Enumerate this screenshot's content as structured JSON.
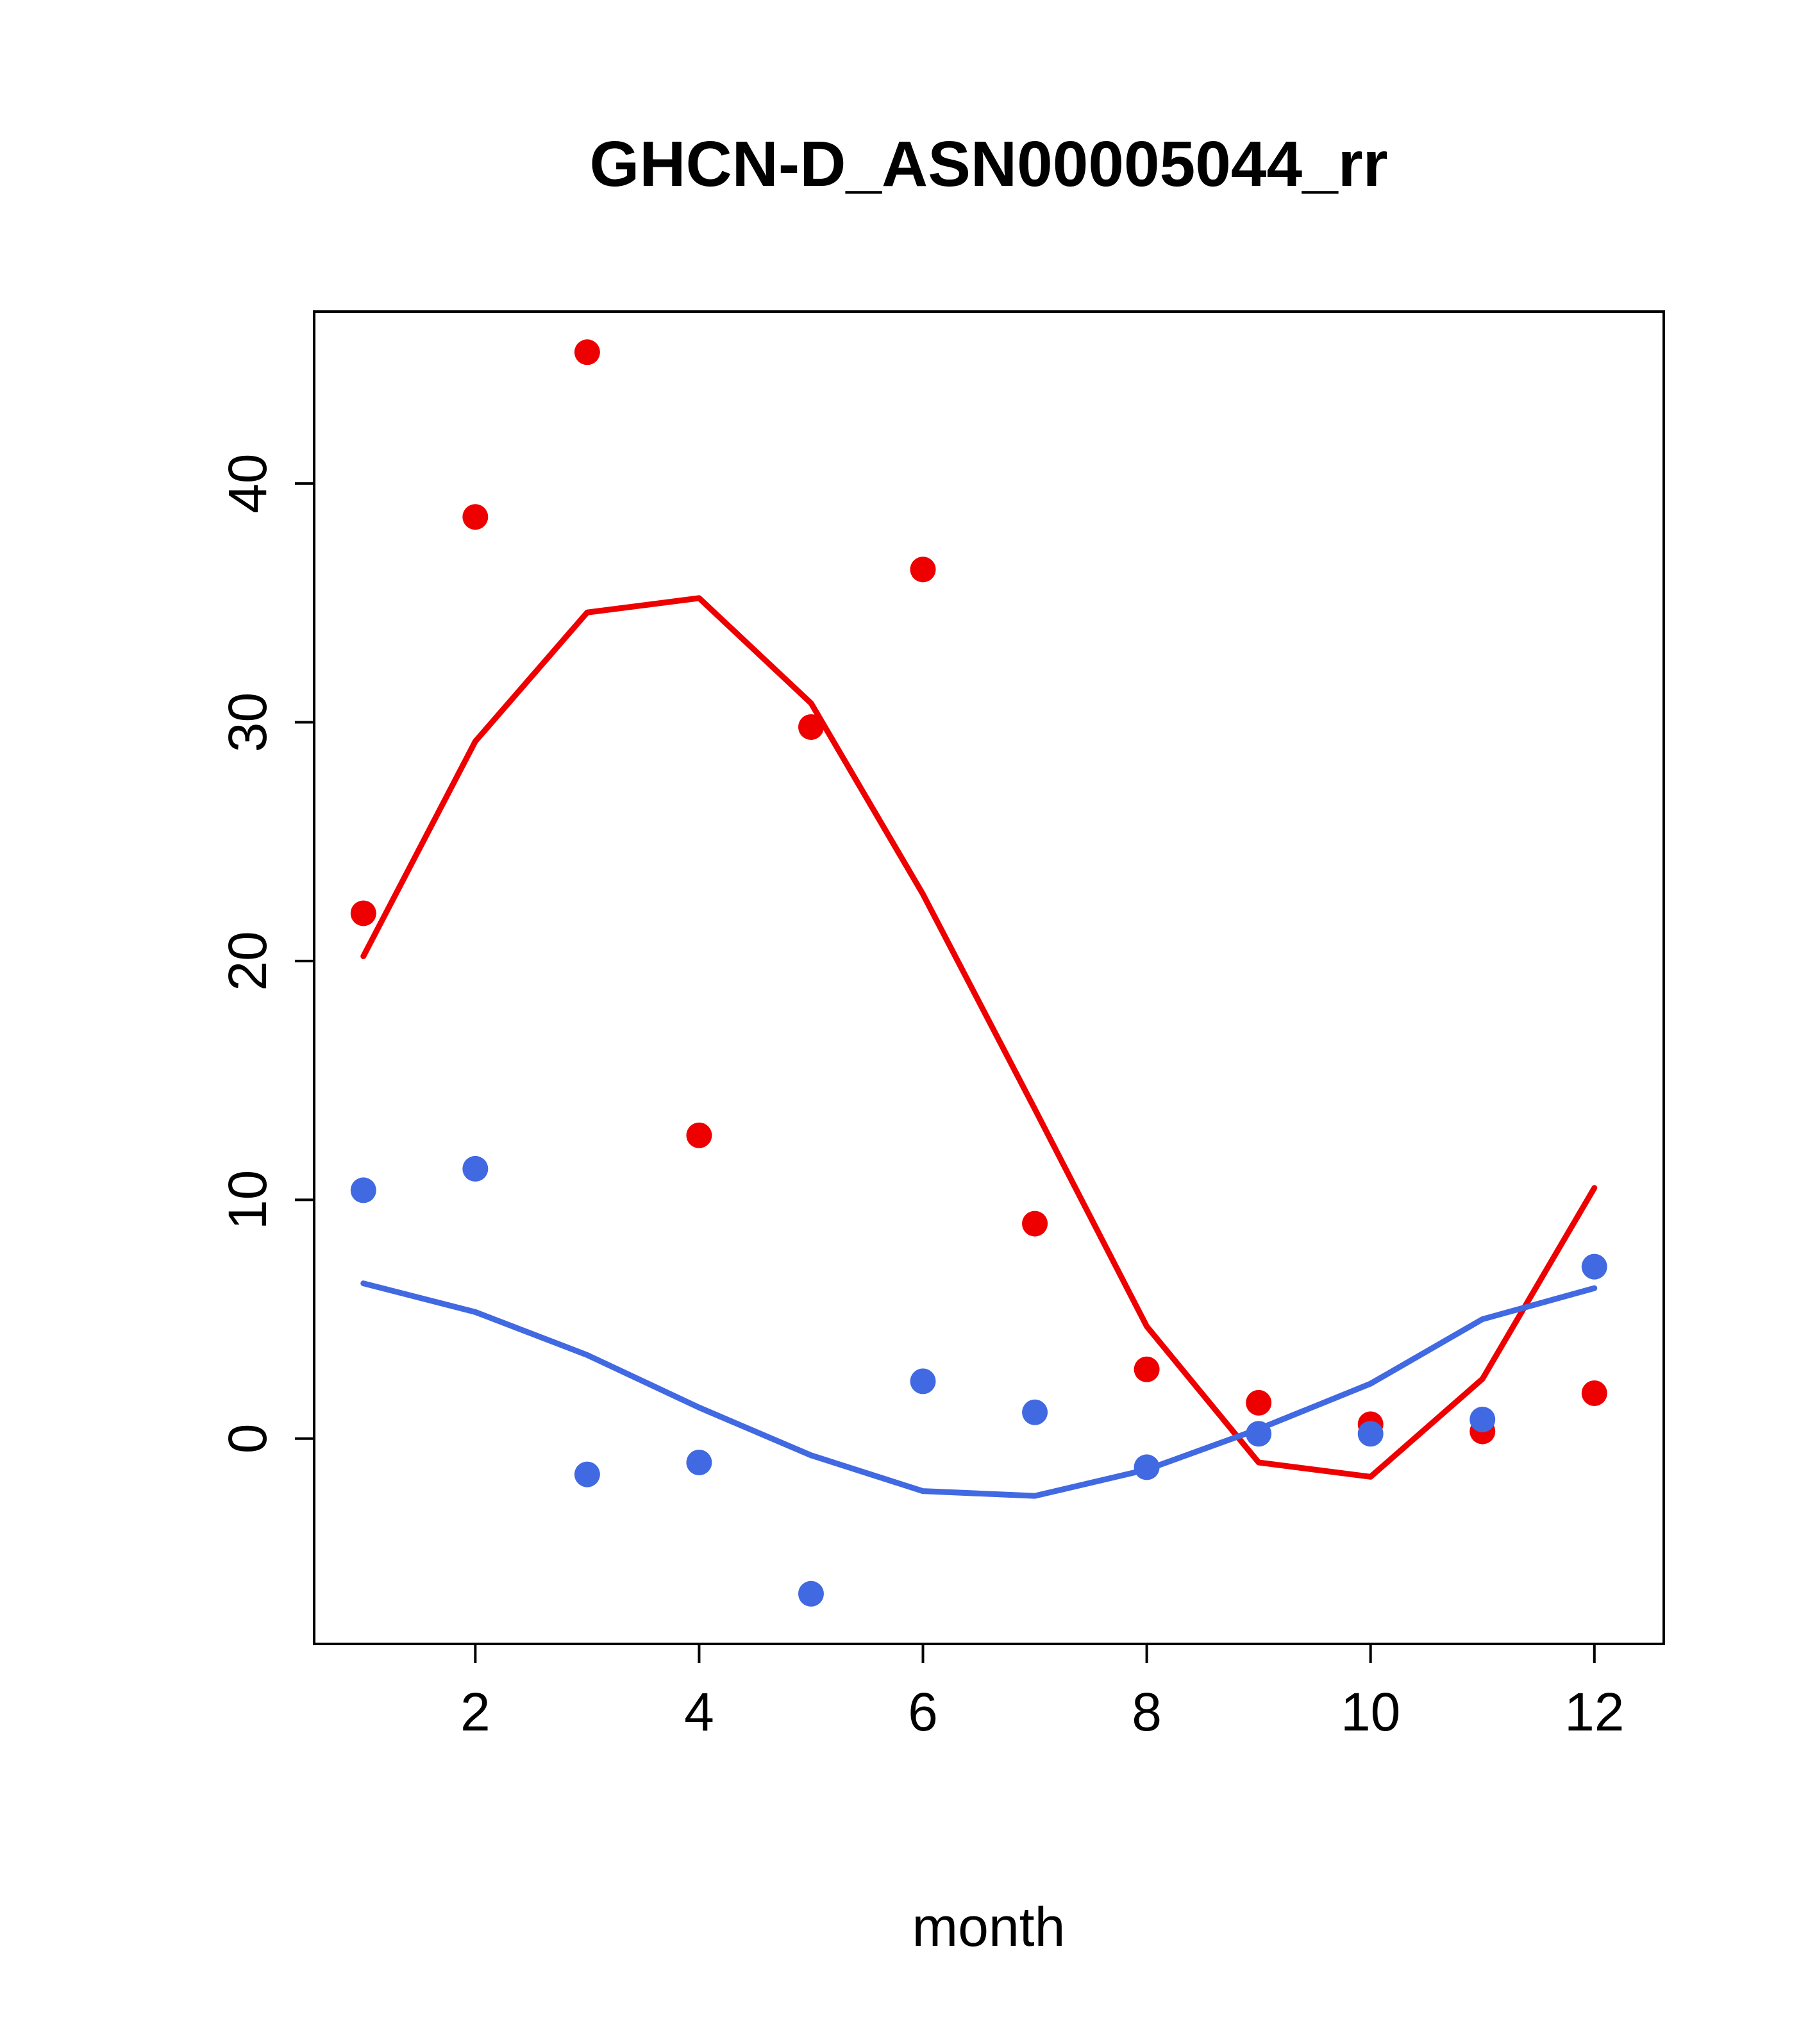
{
  "title": "GHCN-D_ASN00005044_rr",
  "xlabel": "month",
  "chart_data": {
    "type": "scatter",
    "x": [
      1,
      2,
      3,
      4,
      5,
      6,
      7,
      8,
      9,
      10,
      11,
      12
    ],
    "x_ticks": [
      2,
      4,
      6,
      8,
      10,
      12
    ],
    "y_ticks": [
      0,
      10,
      20,
      30,
      40
    ],
    "xlim": [
      0.56,
      12.62
    ],
    "ylim": [
      -8.6,
      47.2
    ],
    "grid": false,
    "legend": "none",
    "colors": {
      "red": "#EE0000",
      "blue": "#4169E1"
    },
    "series": [
      {
        "name": "red-points",
        "kind": "points",
        "color": "#EE0000",
        "values": [
          22.0,
          38.6,
          45.5,
          12.7,
          29.8,
          36.4,
          9.0,
          2.9,
          1.5,
          0.6,
          0.3,
          1.9
        ]
      },
      {
        "name": "red-line",
        "kind": "line",
        "color": "#EE0000",
        "values": [
          20.2,
          29.2,
          34.6,
          35.2,
          30.8,
          22.8,
          13.8,
          4.7,
          -1.0,
          -1.6,
          2.5,
          10.5
        ]
      },
      {
        "name": "blue-points",
        "kind": "points",
        "color": "#4169E1",
        "values": [
          10.4,
          11.3,
          -1.5,
          -1.0,
          -6.5,
          2.4,
          1.1,
          -1.2,
          0.2,
          0.2,
          0.8,
          7.2
        ]
      },
      {
        "name": "blue-line",
        "kind": "line",
        "color": "#4169E1",
        "values": [
          6.5,
          5.3,
          3.5,
          1.3,
          -0.7,
          -2.2,
          -2.4,
          -1.3,
          0.4,
          2.3,
          5.0,
          6.3
        ]
      }
    ]
  }
}
